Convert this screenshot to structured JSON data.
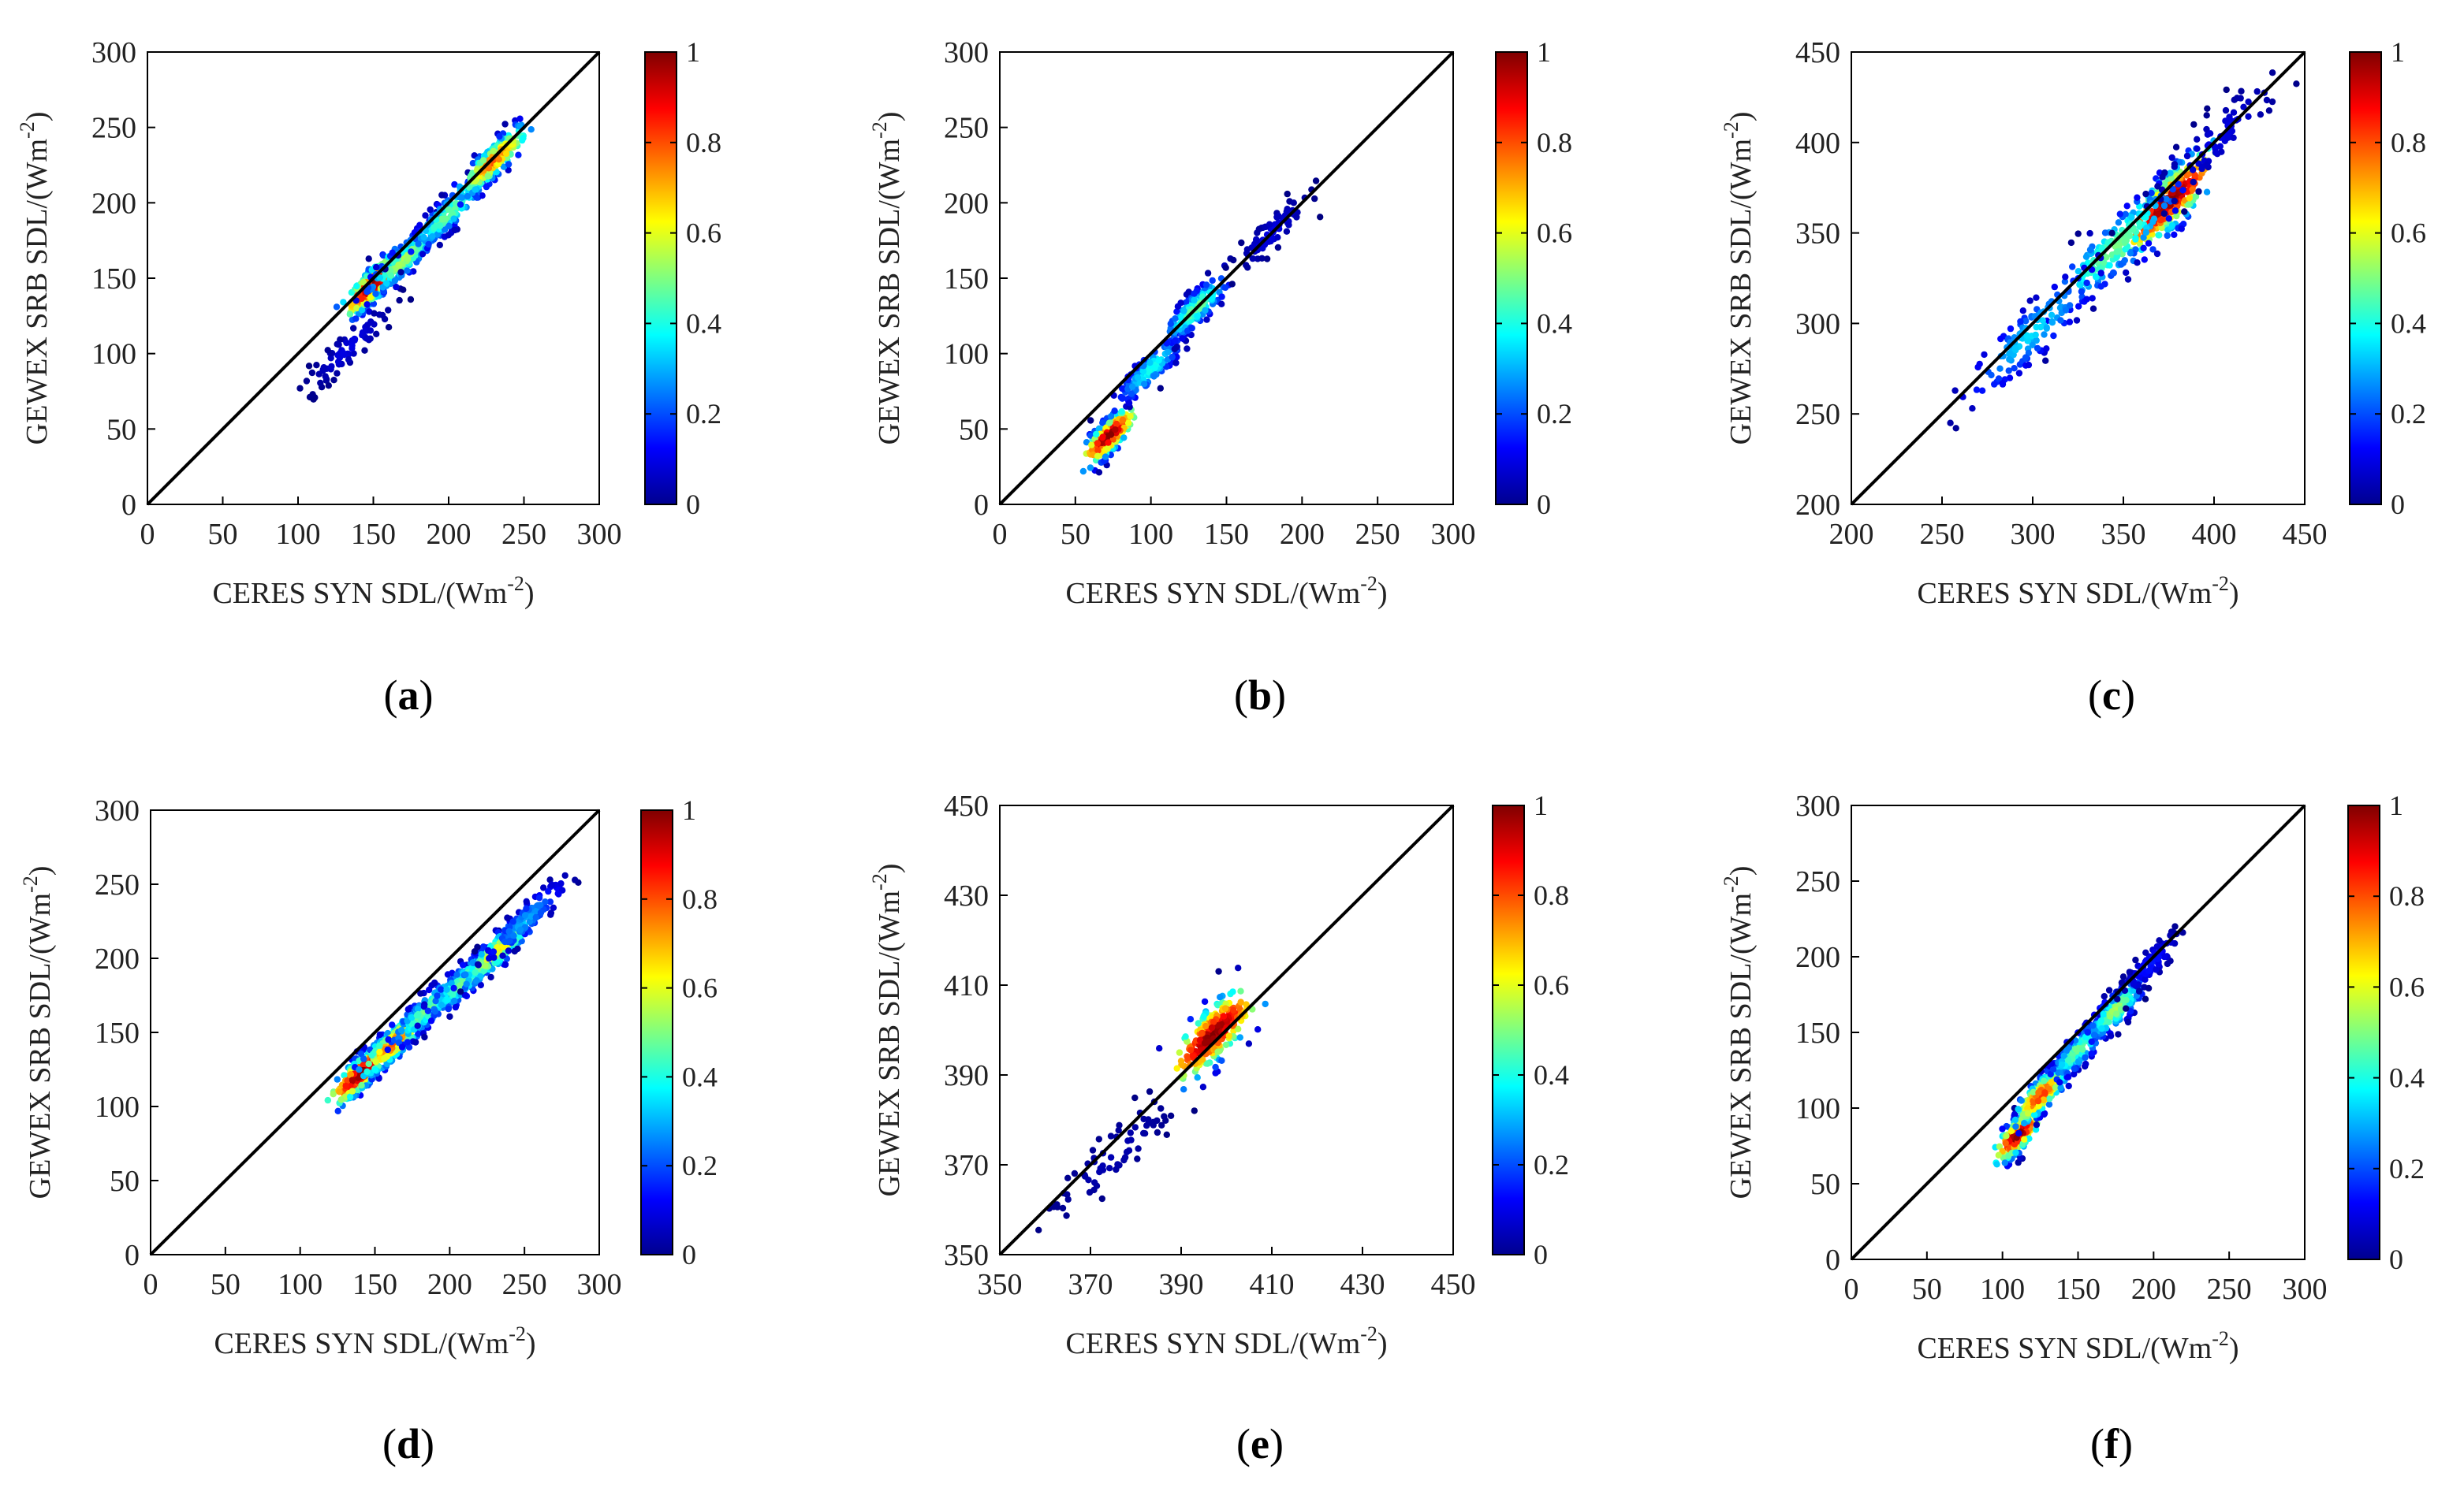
{
  "figure": {
    "colorbar": {
      "ticks": [
        "0",
        "0.2",
        "0.4",
        "0.6",
        "0.8",
        "1"
      ],
      "min": 0,
      "max": 1
    },
    "colors": {
      "identity_line": "#000000",
      "axes": "#000000"
    }
  },
  "chart_data": [
    {
      "id": "a",
      "type": "scatter",
      "panel_label_open": "(",
      "panel_label_letter": "a",
      "panel_label_close": ")",
      "xlabel": "CERES SYN SDL/(Wm",
      "ylabel": "GEWEX SRB SDL/(Wm",
      "unit_exponent": "-2",
      "xlim": [
        0,
        300
      ],
      "ylim": [
        0,
        300
      ],
      "xticks": [
        0,
        50,
        100,
        150,
        200,
        250,
        300
      ],
      "yticks": [
        0,
        50,
        100,
        150,
        200,
        250,
        300
      ],
      "reference_line": "1:1",
      "clusters": [
        {
          "x": 150,
          "y": 146,
          "density": 1.0
        },
        {
          "x": 170,
          "y": 162,
          "density": 0.55
        },
        {
          "x": 200,
          "y": 193,
          "density": 0.5
        },
        {
          "x": 230,
          "y": 228,
          "density": 0.8
        },
        {
          "x": 135,
          "y": 105,
          "density": 0.1
        }
      ]
    },
    {
      "id": "b",
      "type": "scatter",
      "panel_label_open": "(",
      "panel_label_letter": "b",
      "panel_label_close": ")",
      "xlabel": "CERES SYN SDL/(Wm",
      "ylabel": "GEWEX SRB SDL/(Wm",
      "unit_exponent": "-2",
      "xlim": [
        0,
        300
      ],
      "ylim": [
        0,
        300
      ],
      "xticks": [
        0,
        50,
        100,
        150,
        200,
        250,
        300
      ],
      "yticks": [
        0,
        50,
        100,
        150,
        200,
        250,
        300
      ],
      "reference_line": "1:1",
      "clusters": [
        {
          "x": 72,
          "y": 45,
          "density": 1.0
        },
        {
          "x": 100,
          "y": 90,
          "density": 0.4
        },
        {
          "x": 130,
          "y": 130,
          "density": 0.5
        },
        {
          "x": 180,
          "y": 180,
          "density": 0.1
        }
      ]
    },
    {
      "id": "c",
      "type": "scatter",
      "panel_label_open": "(",
      "panel_label_letter": "c",
      "panel_label_close": ")",
      "xlabel": "CERES SYN SDL/(Wm",
      "ylabel": "GEWEX SRB SDL/(Wm",
      "unit_exponent": "-2",
      "xlim": [
        200,
        450
      ],
      "ylim": [
        200,
        450
      ],
      "xticks": [
        200,
        250,
        300,
        350,
        400,
        450
      ],
      "yticks": [
        200,
        250,
        300,
        350,
        400,
        450
      ],
      "reference_line": "1:1",
      "clusters": [
        {
          "x": 375,
          "y": 367,
          "density": 1.0
        },
        {
          "x": 345,
          "y": 342,
          "density": 0.5
        },
        {
          "x": 300,
          "y": 295,
          "density": 0.35
        },
        {
          "x": 400,
          "y": 400,
          "density": 0.1
        }
      ]
    },
    {
      "id": "d",
      "type": "scatter",
      "panel_label_open": "(",
      "panel_label_letter": "d",
      "panel_label_close": ")",
      "xlabel": "CERES SYN SDL/(Wm",
      "ylabel": "GEWEX SRB SDL/(Wm",
      "unit_exponent": "-2",
      "xlim": [
        0,
        300
      ],
      "ylim": [
        0,
        300
      ],
      "xticks": [
        0,
        50,
        100,
        150,
        200,
        250,
        300
      ],
      "yticks": [
        0,
        50,
        100,
        150,
        200,
        250,
        300
      ],
      "reference_line": "1:1",
      "clusters": [
        {
          "x": 140,
          "y": 122,
          "density": 1.0
        },
        {
          "x": 163,
          "y": 143,
          "density": 0.8
        },
        {
          "x": 185,
          "y": 165,
          "density": 0.5
        },
        {
          "x": 210,
          "y": 185,
          "density": 0.5
        },
        {
          "x": 232,
          "y": 205,
          "density": 0.65
        },
        {
          "x": 250,
          "y": 225,
          "density": 0.3
        }
      ]
    },
    {
      "id": "e",
      "type": "scatter",
      "panel_label_open": "(",
      "panel_label_letter": "e",
      "panel_label_close": ")",
      "xlabel": "CERES SYN SDL/(Wm",
      "ylabel": "GEWEX SRB SDL/(Wm",
      "unit_exponent": "-2",
      "xlim": [
        350,
        450
      ],
      "ylim": [
        350,
        450
      ],
      "xticks": [
        350,
        370,
        390,
        410,
        430,
        450
      ],
      "yticks": [
        350,
        370,
        390,
        410,
        430,
        450
      ],
      "reference_line": "1:1",
      "clusters": [
        {
          "x": 397,
          "y": 399,
          "density": 1.0
        },
        {
          "x": 375,
          "y": 372,
          "density": 0.05
        }
      ]
    },
    {
      "id": "f",
      "type": "scatter",
      "panel_label_open": "(",
      "panel_label_letter": "f",
      "panel_label_close": ")",
      "xlabel": "CERES SYN SDL/(Wm",
      "ylabel": "GEWEX SRB SDL/(Wm",
      "unit_exponent": "-2",
      "xlim": [
        0,
        300
      ],
      "ylim": [
        0,
        300
      ],
      "xticks": [
        0,
        50,
        100,
        150,
        200,
        250,
        300
      ],
      "yticks": [
        0,
        50,
        100,
        150,
        200,
        250,
        300
      ],
      "reference_line": "1:1",
      "clusters": [
        {
          "x": 110,
          "y": 82,
          "density": 1.0
        },
        {
          "x": 125,
          "y": 108,
          "density": 0.85
        },
        {
          "x": 150,
          "y": 138,
          "density": 0.5
        },
        {
          "x": 175,
          "y": 165,
          "density": 0.55
        },
        {
          "x": 198,
          "y": 195,
          "density": 0.15
        }
      ]
    }
  ]
}
